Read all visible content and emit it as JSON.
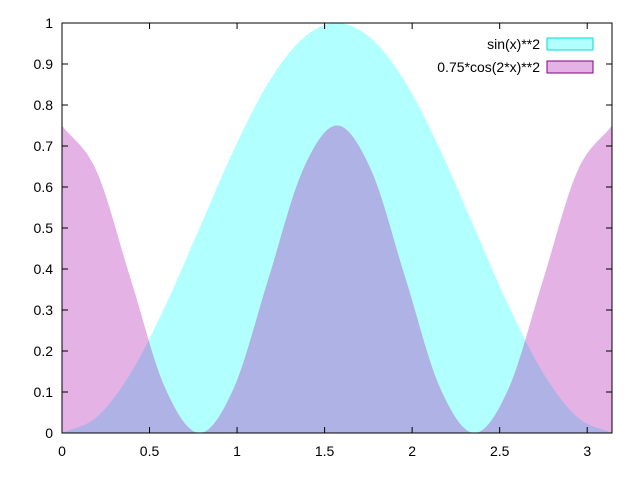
{
  "chart_data": {
    "type": "area",
    "title": "",
    "xlabel": "",
    "ylabel": "",
    "xlim": [
      0,
      3.14159
    ],
    "ylim": [
      0,
      1
    ],
    "grid": false,
    "legend_placement": "top-right",
    "x_ticks": [
      {
        "value": 0,
        "label": "0"
      },
      {
        "value": 0.5,
        "label": "0.5"
      },
      {
        "value": 1,
        "label": "1"
      },
      {
        "value": 1.5,
        "label": "1.5"
      },
      {
        "value": 2,
        "label": "2"
      },
      {
        "value": 2.5,
        "label": "2.5"
      },
      {
        "value": 3,
        "label": "3"
      }
    ],
    "y_ticks": [
      {
        "value": 0,
        "label": "0"
      },
      {
        "value": 0.1,
        "label": "0.1"
      },
      {
        "value": 0.2,
        "label": "0.2"
      },
      {
        "value": 0.3,
        "label": "0.3"
      },
      {
        "value": 0.4,
        "label": "0.4"
      },
      {
        "value": 0.5,
        "label": "0.5"
      },
      {
        "value": 0.6,
        "label": "0.6"
      },
      {
        "value": 0.7,
        "label": "0.7"
      },
      {
        "value": 0.8,
        "label": "0.8"
      },
      {
        "value": 0.9,
        "label": "0.9"
      },
      {
        "value": 1,
        "label": "1"
      }
    ],
    "x": [
      0,
      0.1963,
      0.3927,
      0.589,
      0.7854,
      0.9817,
      1.1781,
      1.3744,
      1.5708,
      1.7671,
      1.9635,
      2.1598,
      2.3562,
      2.5525,
      2.7489,
      2.9452,
      3.1416
    ],
    "series": [
      {
        "name": "sin(x)**2",
        "fill": "#00ffff",
        "stroke": "#00d8d8",
        "opacity": 0.3,
        "values": [
          0,
          0.038,
          0.146,
          0.309,
          0.5,
          0.691,
          0.854,
          0.962,
          1,
          0.962,
          0.854,
          0.691,
          0.5,
          0.309,
          0.146,
          0.038,
          0
        ]
      },
      {
        "name": "0.75*cos(2*x)**2",
        "fill": "#aa00aa",
        "stroke": "#800080",
        "opacity": 0.3,
        "values": [
          0.75,
          0.64,
          0.375,
          0.11,
          0,
          0.11,
          0.375,
          0.64,
          0.75,
          0.64,
          0.375,
          0.11,
          0,
          0.11,
          0.375,
          0.64,
          0.75
        ]
      }
    ]
  }
}
